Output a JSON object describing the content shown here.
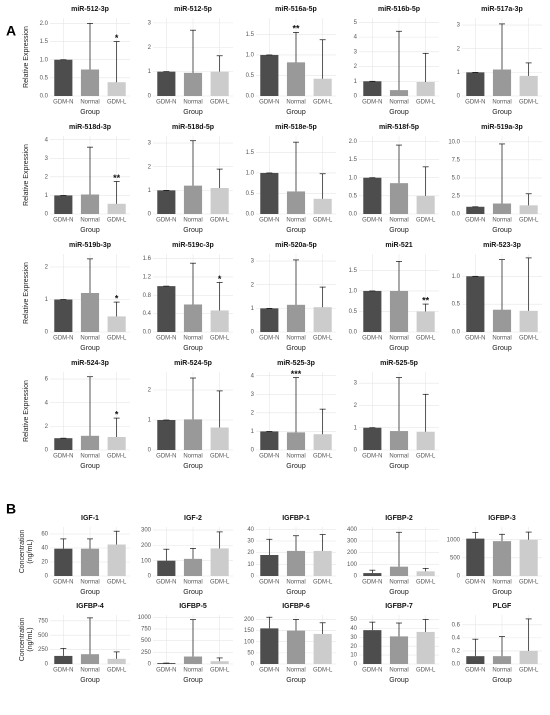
{
  "panels": [
    "A",
    "B"
  ],
  "chart_data": [
    {
      "type": "bar",
      "title": "miR-512-3p",
      "categories": [
        "GDM-N",
        "Normal",
        "GDM-L"
      ],
      "values": [
        1.0,
        0.73,
        0.38
      ],
      "errors": [
        0,
        1.27,
        1.12
      ],
      "colors": [
        "#4d4d4d",
        "#999999",
        "#cccccc"
      ],
      "ylim": [
        0,
        2.15
      ],
      "yticks": [
        {
          "value": 0,
          "label": "0.0"
        },
        0.5,
        {
          "value": 1,
          "label": "1.0"
        },
        1.5,
        {
          "value": 2,
          "label": "2.0"
        }
      ],
      "xlabel": "Group",
      "ylabel": [
        "Relative Expression"
      ],
      "annotations": [
        {
          "text": "*",
          "category": "GDM-L"
        }
      ]
    },
    {
      "type": "bar",
      "title": "miR-512-5p",
      "categories": [
        "GDM-N",
        "Normal",
        "GDM-L"
      ],
      "values": [
        1.0,
        0.95,
        1.0
      ],
      "errors": [
        0,
        1.75,
        0.65
      ],
      "colors": [
        "#4d4d4d",
        "#999999",
        "#cccccc"
      ],
      "ylim": [
        0,
        3.2
      ],
      "yticks": [
        0,
        1,
        2,
        3
      ],
      "xlabel": "Group"
    },
    {
      "type": "bar",
      "title": "miR-516a-5p",
      "categories": [
        "GDM-N",
        "Normal",
        "GDM-L"
      ],
      "values": [
        1.0,
        0.82,
        0.42
      ],
      "errors": [
        0,
        0.73,
        0.95
      ],
      "colors": [
        "#4d4d4d",
        "#999999",
        "#cccccc"
      ],
      "ylim": [
        0,
        1.9
      ],
      "yticks": [
        {
          "value": 0,
          "label": "0.0"
        },
        0.5,
        {
          "value": 1,
          "label": "1.0"
        },
        1.5
      ],
      "xlabel": "Group",
      "annotations": [
        {
          "text": "**",
          "category": "Normal"
        }
      ]
    },
    {
      "type": "bar",
      "title": "miR-516b-5p",
      "categories": [
        "GDM-N",
        "Normal",
        "GDM-L"
      ],
      "values": [
        1.0,
        0.4,
        0.95
      ],
      "errors": [
        0,
        4.0,
        1.95
      ],
      "colors": [
        "#4d4d4d",
        "#999999",
        "#cccccc"
      ],
      "ylim": [
        0,
        5.3
      ],
      "yticks": [
        0,
        1,
        2,
        3,
        4,
        5
      ],
      "xlabel": "Group"
    },
    {
      "type": "bar",
      "title": "miR-517a-3p",
      "categories": [
        "GDM-N",
        "Normal",
        "GDM-L"
      ],
      "values": [
        1.0,
        1.12,
        0.85
      ],
      "errors": [
        0,
        1.93,
        0.55
      ],
      "colors": [
        "#4d4d4d",
        "#999999",
        "#cccccc"
      ],
      "ylim": [
        0,
        3.3
      ],
      "yticks": [
        0,
        1,
        2,
        3
      ],
      "xlabel": "Group"
    },
    {
      "type": "bar",
      "title": "miR-518d-3p",
      "categories": [
        "GDM-N",
        "Normal",
        "GDM-L"
      ],
      "values": [
        1.0,
        1.05,
        0.55
      ],
      "errors": [
        0,
        2.55,
        1.2
      ],
      "colors": [
        "#4d4d4d",
        "#999999",
        "#cccccc"
      ],
      "ylim": [
        0,
        4.2
      ],
      "yticks": [
        0,
        1,
        2,
        3,
        4
      ],
      "xlabel": "Group",
      "ylabel": [
        "Relative Expression"
      ],
      "annotations": [
        {
          "text": "**",
          "category": "GDM-L"
        }
      ]
    },
    {
      "type": "bar",
      "title": "miR-518d-5p",
      "categories": [
        "GDM-N",
        "Normal",
        "GDM-L"
      ],
      "values": [
        1.0,
        1.2,
        1.1
      ],
      "errors": [
        0,
        1.9,
        0.8
      ],
      "colors": [
        "#4d4d4d",
        "#999999",
        "#cccccc"
      ],
      "ylim": [
        0,
        3.3
      ],
      "yticks": [
        0,
        1,
        2,
        3
      ],
      "xlabel": "Group"
    },
    {
      "type": "bar",
      "title": "miR-518e-5p",
      "categories": [
        "GDM-N",
        "Normal",
        "GDM-L"
      ],
      "values": [
        1.0,
        0.55,
        0.37
      ],
      "errors": [
        0,
        1.2,
        0.61
      ],
      "colors": [
        "#4d4d4d",
        "#999999",
        "#cccccc"
      ],
      "ylim": [
        0,
        1.9
      ],
      "yticks": [
        {
          "value": 0,
          "label": "0.0"
        },
        0.5,
        {
          "value": 1,
          "label": "1.0"
        },
        1.5
      ],
      "xlabel": "Group"
    },
    {
      "type": "bar",
      "title": "miR-518f-5p",
      "categories": [
        "GDM-N",
        "Normal",
        "GDM-L"
      ],
      "values": [
        1.0,
        0.85,
        0.5
      ],
      "errors": [
        0,
        1.05,
        0.8
      ],
      "colors": [
        "#4d4d4d",
        "#999999",
        "#cccccc"
      ],
      "ylim": [
        0,
        2.15
      ],
      "yticks": [
        {
          "value": 0,
          "label": "0.0"
        },
        0.5,
        {
          "value": 1,
          "label": "1.0"
        },
        1.5,
        {
          "value": 2,
          "label": "2.0"
        }
      ],
      "xlabel": "Group"
    },
    {
      "type": "bar",
      "title": "miR-519a-3p",
      "categories": [
        "GDM-N",
        "Normal",
        "GDM-L"
      ],
      "values": [
        1.0,
        1.45,
        1.2
      ],
      "errors": [
        0,
        8.25,
        1.6
      ],
      "colors": [
        "#4d4d4d",
        "#999999",
        "#cccccc"
      ],
      "ylim": [
        0,
        10.8
      ],
      "yticks": [
        {
          "value": 0,
          "label": "0.0"
        },
        2.5,
        {
          "value": 5,
          "label": "5.0"
        },
        7.5,
        {
          "value": 10,
          "label": "10.0"
        }
      ],
      "xlabel": "Group"
    },
    {
      "type": "bar",
      "title": "miR-519b-3p",
      "categories": [
        "GDM-N",
        "Normal",
        "GDM-L"
      ],
      "values": [
        1.0,
        1.2,
        0.48
      ],
      "errors": [
        0,
        1.05,
        0.44
      ],
      "colors": [
        "#4d4d4d",
        "#999999",
        "#cccccc"
      ],
      "ylim": [
        0,
        2.4
      ],
      "yticks": [
        0,
        1,
        2
      ],
      "xlabel": "Group",
      "ylabel": [
        "Relative Expression"
      ],
      "annotations": [
        {
          "text": "*",
          "category": "GDM-L"
        }
      ]
    },
    {
      "type": "bar",
      "title": "miR-519c-3p",
      "categories": [
        "GDM-N",
        "Normal",
        "GDM-L"
      ],
      "values": [
        1.0,
        0.6,
        0.47
      ],
      "errors": [
        0,
        0.9,
        0.61
      ],
      "colors": [
        "#4d4d4d",
        "#999999",
        "#cccccc"
      ],
      "ylim": [
        0,
        1.7
      ],
      "yticks": [
        {
          "value": 0,
          "label": "0.0"
        },
        0.4,
        0.8,
        1.2,
        1.6
      ],
      "xlabel": "Group",
      "annotations": [
        {
          "text": "*",
          "category": "GDM-L"
        }
      ]
    },
    {
      "type": "bar",
      "title": "miR-520a-5p",
      "categories": [
        "GDM-N",
        "Normal",
        "GDM-L"
      ],
      "values": [
        1.0,
        1.15,
        1.05
      ],
      "errors": [
        0,
        1.9,
        0.85
      ],
      "colors": [
        "#4d4d4d",
        "#999999",
        "#cccccc"
      ],
      "ylim": [
        0,
        3.3
      ],
      "yticks": [
        0,
        1,
        2,
        3
      ],
      "xlabel": "Group"
    },
    {
      "type": "bar",
      "title": "miR-521",
      "categories": [
        "GDM-N",
        "Normal",
        "GDM-L"
      ],
      "values": [
        1.0,
        1.0,
        0.5
      ],
      "errors": [
        0,
        0.72,
        0.18
      ],
      "colors": [
        "#4d4d4d",
        "#999999",
        "#cccccc"
      ],
      "ylim": [
        0,
        1.9
      ],
      "yticks": [
        {
          "value": 0,
          "label": "0.0"
        },
        0.5,
        {
          "value": 1,
          "label": "1.0"
        },
        1.5
      ],
      "xlabel": "Group",
      "annotations": [
        {
          "text": "**",
          "category": "GDM-L"
        }
      ]
    },
    {
      "type": "bar",
      "title": "miR-523-3p",
      "categories": [
        "GDM-N",
        "Normal",
        "GDM-L"
      ],
      "values": [
        1.0,
        0.4,
        0.38
      ],
      "errors": [
        0,
        0.9,
        0.95
      ],
      "colors": [
        "#4d4d4d",
        "#999999",
        "#cccccc"
      ],
      "ylim": [
        0,
        1.4
      ],
      "yticks": [
        {
          "value": 0,
          "label": "0.0"
        },
        0.5,
        {
          "value": 1,
          "label": "1.0"
        }
      ],
      "xlabel": "Group"
    },
    {
      "type": "bar",
      "title": "miR-524-3p",
      "categories": [
        "GDM-N",
        "Normal",
        "GDM-L"
      ],
      "values": [
        1.0,
        1.2,
        1.1
      ],
      "errors": [
        0,
        5.0,
        1.6
      ],
      "colors": [
        "#4d4d4d",
        "#999999",
        "#cccccc"
      ],
      "ylim": [
        0,
        6.6
      ],
      "yticks": [
        0,
        2,
        4,
        6
      ],
      "xlabel": "Group",
      "ylabel": [
        "Relative Expression"
      ],
      "annotations": [
        {
          "text": "*",
          "category": "GDM-L"
        }
      ]
    },
    {
      "type": "bar",
      "title": "miR-524-5p",
      "categories": [
        "GDM-N",
        "Normal",
        "GDM-L"
      ],
      "values": [
        1.0,
        1.02,
        0.75
      ],
      "errors": [
        0,
        1.38,
        1.22
      ],
      "colors": [
        "#4d4d4d",
        "#999999",
        "#cccccc"
      ],
      "ylim": [
        0,
        2.6
      ],
      "yticks": [
        0,
        1,
        2
      ],
      "xlabel": "Group"
    },
    {
      "type": "bar",
      "title": "miR-525-3p",
      "categories": [
        "GDM-N",
        "Normal",
        "GDM-L"
      ],
      "values": [
        1.0,
        0.95,
        0.85
      ],
      "errors": [
        0,
        2.95,
        1.35
      ],
      "colors": [
        "#4d4d4d",
        "#999999",
        "#cccccc"
      ],
      "ylim": [
        0,
        4.2
      ],
      "yticks": [
        0,
        1,
        2,
        3,
        4
      ],
      "xlabel": "Group",
      "annotations": [
        {
          "text": "***",
          "category": "Normal"
        }
      ]
    },
    {
      "type": "bar",
      "title": "miR-525-5p",
      "categories": [
        "GDM-N",
        "Normal",
        "GDM-L"
      ],
      "values": [
        1.0,
        0.85,
        0.82
      ],
      "errors": [
        0,
        2.4,
        1.68
      ],
      "colors": [
        "#4d4d4d",
        "#999999",
        "#cccccc"
      ],
      "ylim": [
        0,
        3.5
      ],
      "yticks": [
        0,
        1,
        2,
        3
      ],
      "xlabel": "Group"
    },
    {
      "type": "bar",
      "title": "IGF-1",
      "categories": [
        "GDM-N",
        "Normal",
        "GDM-L"
      ],
      "values": [
        39,
        39,
        45
      ],
      "errors": [
        14,
        14,
        19
      ],
      "colors": [
        "#4d4d4d",
        "#999999",
        "#cccccc"
      ],
      "ylim": [
        0,
        70
      ],
      "yticks": [
        0,
        20,
        40,
        60
      ],
      "xlabel": "Group",
      "ylabel": [
        "Concentration",
        "(ng/mL)"
      ]
    },
    {
      "type": "bar",
      "title": "IGF-2",
      "categories": [
        "GDM-N",
        "Normal",
        "GDM-L"
      ],
      "values": [
        100,
        112,
        180
      ],
      "errors": [
        75,
        68,
        108
      ],
      "colors": [
        "#4d4d4d",
        "#999999",
        "#cccccc"
      ],
      "ylim": [
        0,
        320
      ],
      "yticks": [
        0,
        100,
        200,
        300
      ],
      "xlabel": "Group"
    },
    {
      "type": "bar",
      "title": "IGFBP-1",
      "categories": [
        "GDM-N",
        "Normal",
        "GDM-L"
      ],
      "values": [
        18,
        21.5,
        21.5
      ],
      "errors": [
        13.5,
        13,
        14
      ],
      "colors": [
        "#4d4d4d",
        "#999999",
        "#cccccc"
      ],
      "ylim": [
        0,
        42
      ],
      "yticks": [
        0,
        10,
        20,
        30,
        40
      ],
      "xlabel": "Group"
    },
    {
      "type": "bar",
      "title": "IGFBP-2",
      "categories": [
        "GDM-N",
        "Normal",
        "GDM-L"
      ],
      "values": [
        25,
        80,
        40
      ],
      "errors": [
        25,
        295,
        25
      ],
      "colors": [
        "#4d4d4d",
        "#999999",
        "#cccccc"
      ],
      "ylim": [
        0,
        420
      ],
      "yticks": [
        0,
        100,
        200,
        300,
        400
      ],
      "xlabel": "Group"
    },
    {
      "type": "bar",
      "title": "IGFBP-3",
      "categories": [
        "GDM-N",
        "Normal",
        "GDM-L"
      ],
      "values": [
        1030,
        960,
        1000
      ],
      "errors": [
        170,
        190,
        210
      ],
      "colors": [
        "#4d4d4d",
        "#999999",
        "#cccccc"
      ],
      "ylim": [
        0,
        1350
      ],
      "yticks": [
        0,
        500,
        1000
      ],
      "xlabel": "Group"
    },
    {
      "type": "bar",
      "title": "IGFBP-4",
      "categories": [
        "GDM-N",
        "Normal",
        "GDM-L"
      ],
      "values": [
        140,
        170,
        90
      ],
      "errors": [
        130,
        630,
        120
      ],
      "colors": [
        "#4d4d4d",
        "#999999",
        "#cccccc"
      ],
      "ylim": [
        0,
        850
      ],
      "yticks": [
        0,
        250,
        500,
        750
      ],
      "xlabel": "Group",
      "ylabel": [
        "Concentration",
        "(ng/mL)"
      ]
    },
    {
      "type": "bar",
      "title": "IGFBP-5",
      "categories": [
        "GDM-N",
        "Normal",
        "GDM-L"
      ],
      "values": [
        20,
        160,
        60
      ],
      "errors": [
        0,
        790,
        70
      ],
      "colors": [
        "#4d4d4d",
        "#999999",
        "#cccccc"
      ],
      "ylim": [
        0,
        1050
      ],
      "yticks": [
        0,
        250,
        500,
        750,
        1000
      ],
      "xlabel": "Group"
    },
    {
      "type": "bar",
      "title": "IGFBP-6",
      "categories": [
        "GDM-N",
        "Normal",
        "GDM-L"
      ],
      "values": [
        160,
        150,
        135
      ],
      "errors": [
        50,
        50,
        50
      ],
      "colors": [
        "#4d4d4d",
        "#999999",
        "#cccccc"
      ],
      "ylim": [
        0,
        220
      ],
      "yticks": [
        0,
        50,
        100,
        150,
        200
      ],
      "xlabel": "Group"
    },
    {
      "type": "bar",
      "title": "IGFBP-7",
      "categories": [
        "GDM-N",
        "Normal",
        "GDM-L"
      ],
      "values": [
        38,
        31,
        36
      ],
      "errors": [
        9,
        15,
        14
      ],
      "colors": [
        "#4d4d4d",
        "#999999",
        "#cccccc"
      ],
      "ylim": [
        0,
        55
      ],
      "yticks": [
        0,
        10,
        20,
        30,
        40,
        50
      ],
      "xlabel": "Group"
    },
    {
      "type": "bar",
      "title": "PLGF",
      "categories": [
        "GDM-N",
        "Normal",
        "GDM-L"
      ],
      "values": [
        0.12,
        0.12,
        0.2
      ],
      "errors": [
        0.26,
        0.3,
        0.49
      ],
      "colors": [
        "#4d4d4d",
        "#999999",
        "#cccccc"
      ],
      "ylim": [
        0,
        0.75
      ],
      "yticks": [
        {
          "value": 0,
          "label": "0.0"
        },
        0.2,
        0.4,
        0.6
      ],
      "xlabel": "Group"
    }
  ]
}
